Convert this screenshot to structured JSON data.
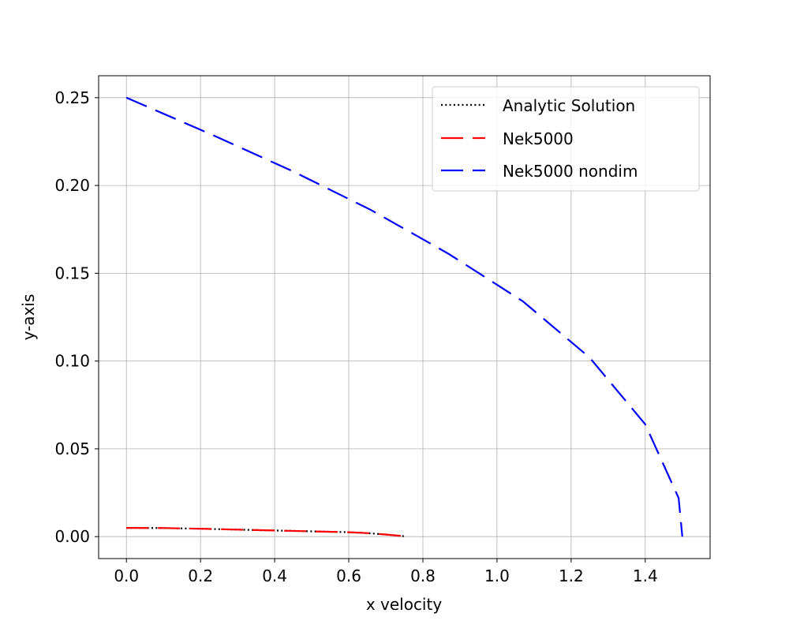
{
  "chart_data": {
    "type": "line",
    "xlabel": "x velocity",
    "ylabel": "y-axis",
    "xlim": [
      -0.075,
      1.575
    ],
    "ylim": [
      -0.0125,
      0.2625
    ],
    "xticks": [
      "0.0",
      "0.2",
      "0.4",
      "0.6",
      "0.8",
      "1.0",
      "1.2",
      "1.4"
    ],
    "xtick_values": [
      0.0,
      0.2,
      0.4,
      0.6,
      0.8,
      1.0,
      1.2,
      1.4
    ],
    "yticks": [
      "0.00",
      "0.05",
      "0.10",
      "0.15",
      "0.20",
      "0.25"
    ],
    "ytick_values": [
      0.0,
      0.05,
      0.1,
      0.15,
      0.2,
      0.25
    ],
    "grid": true,
    "legend_position": "top-right",
    "series": [
      {
        "name": "Analytic Solution",
        "color": "#000000",
        "style": "dotted",
        "x": [
          0.0,
          0.1,
          0.2,
          0.3,
          0.4,
          0.5,
          0.6,
          0.65,
          0.7,
          0.75
        ],
        "y": [
          0.005,
          0.0049,
          0.0045,
          0.004,
          0.0035,
          0.003,
          0.0025,
          0.002,
          0.0012,
          0.0002
        ]
      },
      {
        "name": "Nek5000",
        "color": "#ff0000",
        "style": "dashed",
        "x": [
          0.0,
          0.1,
          0.2,
          0.3,
          0.4,
          0.5,
          0.6,
          0.65,
          0.7,
          0.75
        ],
        "y": [
          0.005,
          0.0049,
          0.0045,
          0.004,
          0.0035,
          0.003,
          0.0025,
          0.002,
          0.0012,
          0.0002
        ]
      },
      {
        "name": "Nek5000 nondim",
        "color": "#0000ff",
        "style": "dashed",
        "x": [
          0.0,
          0.23,
          0.45,
          0.66,
          0.87,
          1.07,
          1.25,
          1.4,
          1.49,
          1.5
        ],
        "y": [
          0.25,
          0.229,
          0.208,
          0.186,
          0.161,
          0.134,
          0.102,
          0.064,
          0.022,
          0.0
        ]
      }
    ]
  }
}
